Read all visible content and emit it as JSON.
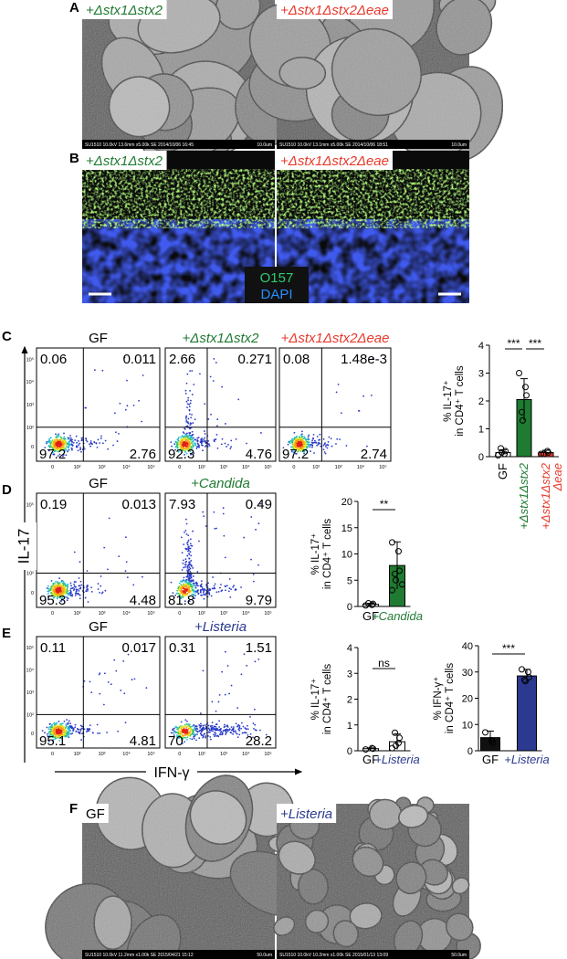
{
  "panels": {
    "A": {
      "label": "A",
      "images": [
        {
          "caption": "+Δstx1Δstx2",
          "footer": "SU1510 10.0kV 13.6mm x5.00k SE 2014/10/06 16:45",
          "scale": "10.0um"
        },
        {
          "caption": "+Δstx1Δstx2Δeae",
          "footer": "SU1510 10.0kV 13.1mm x5.00k SE 2014/10/06 18:51",
          "scale": "10.0um"
        }
      ]
    },
    "B": {
      "label": "B",
      "images": [
        {
          "caption": "+Δstx1Δstx2"
        },
        {
          "caption": "+Δstx1Δstx2Δeae"
        }
      ],
      "legend": [
        "O157",
        "DAPI"
      ]
    },
    "C": {
      "label": "C",
      "flow": [
        {
          "title": "GF",
          "quadrants": [
            "0.06",
            "0.011",
            "97.2",
            "2.76"
          ]
        },
        {
          "title": "+Δstx1Δstx2",
          "quadrants": [
            "2.66",
            "0.271",
            "92.3",
            "4.76"
          ]
        },
        {
          "title": "+Δstx1Δstx2Δeae",
          "quadrants": [
            "0.08",
            "1.48e-3",
            "97.2",
            "2.74"
          ]
        }
      ],
      "bar": {
        "ylabel": [
          "% IL-17⁺",
          "in CD4⁺ T cells"
        ],
        "ylim": [
          0,
          4
        ],
        "yticks": [
          0,
          1,
          2,
          3,
          4
        ],
        "categories": [
          [
            "GF"
          ],
          [
            "+Δstx1Δstx2"
          ],
          [
            "+Δstx1Δstx2",
            "Δeae"
          ]
        ],
        "colors": [
          "#ffffff",
          "#1f7a32",
          "#e8392b"
        ],
        "label_colors": [
          "#000000",
          "#1f7a32",
          "#e8392b"
        ],
        "values": [
          0.15,
          2.05,
          0.15
        ],
        "errors": [
          0.1,
          0.75,
          0.08
        ],
        "points": [
          [
            0.05,
            0.1,
            0.2,
            0.3,
            0.15
          ],
          [
            3.0,
            2.5,
            2.2,
            1.6,
            1.3
          ],
          [
            0.1,
            0.2,
            0.15,
            0.1
          ]
        ],
        "significance": [
          "***",
          "***"
        ]
      }
    },
    "D": {
      "label": "D",
      "flow": [
        {
          "title": "GF",
          "quadrants": [
            "0.19",
            "0.013",
            "95.3",
            "4.48"
          ]
        },
        {
          "title": "+Candida",
          "quadrants": [
            "7.93",
            "0.49",
            "81.8",
            "9.79"
          ]
        }
      ],
      "bar": {
        "ylabel": [
          "% IL-17⁺",
          "in CD4⁺ T cells"
        ],
        "ylim": [
          0,
          20
        ],
        "yticks": [
          0,
          5,
          10,
          15,
          20
        ],
        "categories": [
          [
            "GF"
          ],
          [
            "+Candida"
          ]
        ],
        "colors": [
          "#ffffff",
          "#1f7a32"
        ],
        "label_colors": [
          "#000000",
          "#1f7a32"
        ],
        "values": [
          0.4,
          7.8
        ],
        "errors": [
          0.2,
          4.5
        ],
        "points": [
          [
            0.2,
            0.3,
            0.5,
            0.6
          ],
          [
            12.2,
            10.5,
            6.8,
            6.2,
            5.0,
            4.2,
            3.1
          ]
        ],
        "significance": [
          "**"
        ]
      }
    },
    "E": {
      "label": "E",
      "flow": [
        {
          "title": "GF",
          "quadrants": [
            "0.11",
            "0.017",
            "95.1",
            "4.81"
          ]
        },
        {
          "title": "+Listeria",
          "quadrants": [
            "0.31",
            "1.51",
            "70",
            "28.2"
          ]
        }
      ],
      "bars": [
        {
          "ylabel": [
            "% IL-17⁺",
            "in CD4⁺ T cells"
          ],
          "ylim": [
            0,
            4
          ],
          "yticks": [
            0,
            1,
            2,
            3,
            4
          ],
          "categories": [
            [
              "GF"
            ],
            [
              "+Listeria"
            ]
          ],
          "colors": [
            "#ffffff",
            "#ffffff"
          ],
          "label_colors": [
            "#000000",
            "#2b3990"
          ],
          "values": [
            0.08,
            0.35
          ],
          "errors": [
            0.03,
            0.3
          ],
          "points": [
            [
              0.05,
              0.1,
              0.08
            ],
            [
              0.1,
              0.3,
              0.5,
              0.7,
              0.2
            ]
          ],
          "significance": [
            "ns"
          ]
        },
        {
          "ylabel": [
            "% IFN-γ⁺",
            "in CD4⁺ T cells"
          ],
          "ylim": [
            0,
            40
          ],
          "yticks": [
            0,
            10,
            20,
            30,
            40
          ],
          "categories": [
            [
              "GF"
            ],
            [
              "+Listeria"
            ]
          ],
          "colors": [
            "#111111",
            "#2b3990"
          ],
          "label_colors": [
            "#000000",
            "#2b3990"
          ],
          "values": [
            5,
            28.5
          ],
          "errors": [
            2.5,
            2.5
          ],
          "points": [
            [
              7,
              4,
              3
            ],
            [
              31,
              30,
              28,
              27,
              26.5
            ]
          ],
          "significance": [
            "***"
          ]
        }
      ]
    },
    "F": {
      "label": "F",
      "images": [
        {
          "caption": "GF",
          "footer": "SU1510 10.0kV 11.2mm x1.00k SE 2015/04/21 15:12",
          "scale": "50.0um"
        },
        {
          "caption": "+Listeria",
          "footer": "SU1510 10.0kV 10.2mm x1.00k SE 2015/01/13 13:09",
          "scale": "50.0um"
        }
      ]
    }
  },
  "axes": {
    "y_label": "IL-17",
    "x_label": "IFN-γ",
    "yticks": [
      "10⁵",
      "10⁴",
      "10³",
      "10²",
      "0"
    ],
    "xticks": [
      "0",
      "10²",
      "10³",
      "10⁴",
      "10⁵"
    ]
  }
}
